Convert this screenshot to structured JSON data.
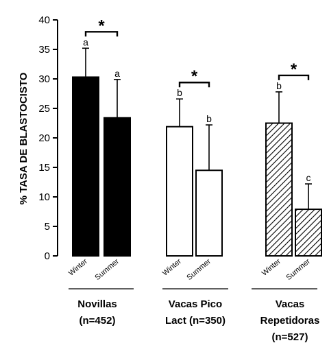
{
  "chart_data": {
    "type": "bar",
    "ylabel": "% TASA DE BLASTOCISTO",
    "ylim": [
      0,
      40
    ],
    "yticks": [
      0,
      5,
      10,
      15,
      20,
      25,
      30,
      35,
      40
    ],
    "grid": false,
    "groups": [
      {
        "label_lines": [
          "Novillas",
          "(n=452)"
        ],
        "fill": "solid-black",
        "significance": "*",
        "bars": [
          {
            "category": "Winter",
            "value": 30.3,
            "error": 4.9,
            "letter": "a"
          },
          {
            "category": "Summer",
            "value": 23.4,
            "error": 6.5,
            "letter": "a"
          }
        ]
      },
      {
        "label_lines": [
          "Vacas Pico",
          "Lact (n=350)"
        ],
        "fill": "white",
        "significance": "*",
        "bars": [
          {
            "category": "Winter",
            "value": 21.9,
            "error": 4.7,
            "letter": "b"
          },
          {
            "category": "Summer",
            "value": 14.5,
            "error": 7.7,
            "letter": "b"
          }
        ]
      },
      {
        "label_lines": [
          "Vacas",
          "Repetidoras",
          "(n=527)"
        ],
        "fill": "hatched",
        "significance": "*",
        "bars": [
          {
            "category": "Winter",
            "value": 22.5,
            "error": 5.3,
            "letter": "b"
          },
          {
            "category": "Summer",
            "value": 7.9,
            "error": 4.3,
            "letter": "c"
          }
        ]
      }
    ]
  }
}
